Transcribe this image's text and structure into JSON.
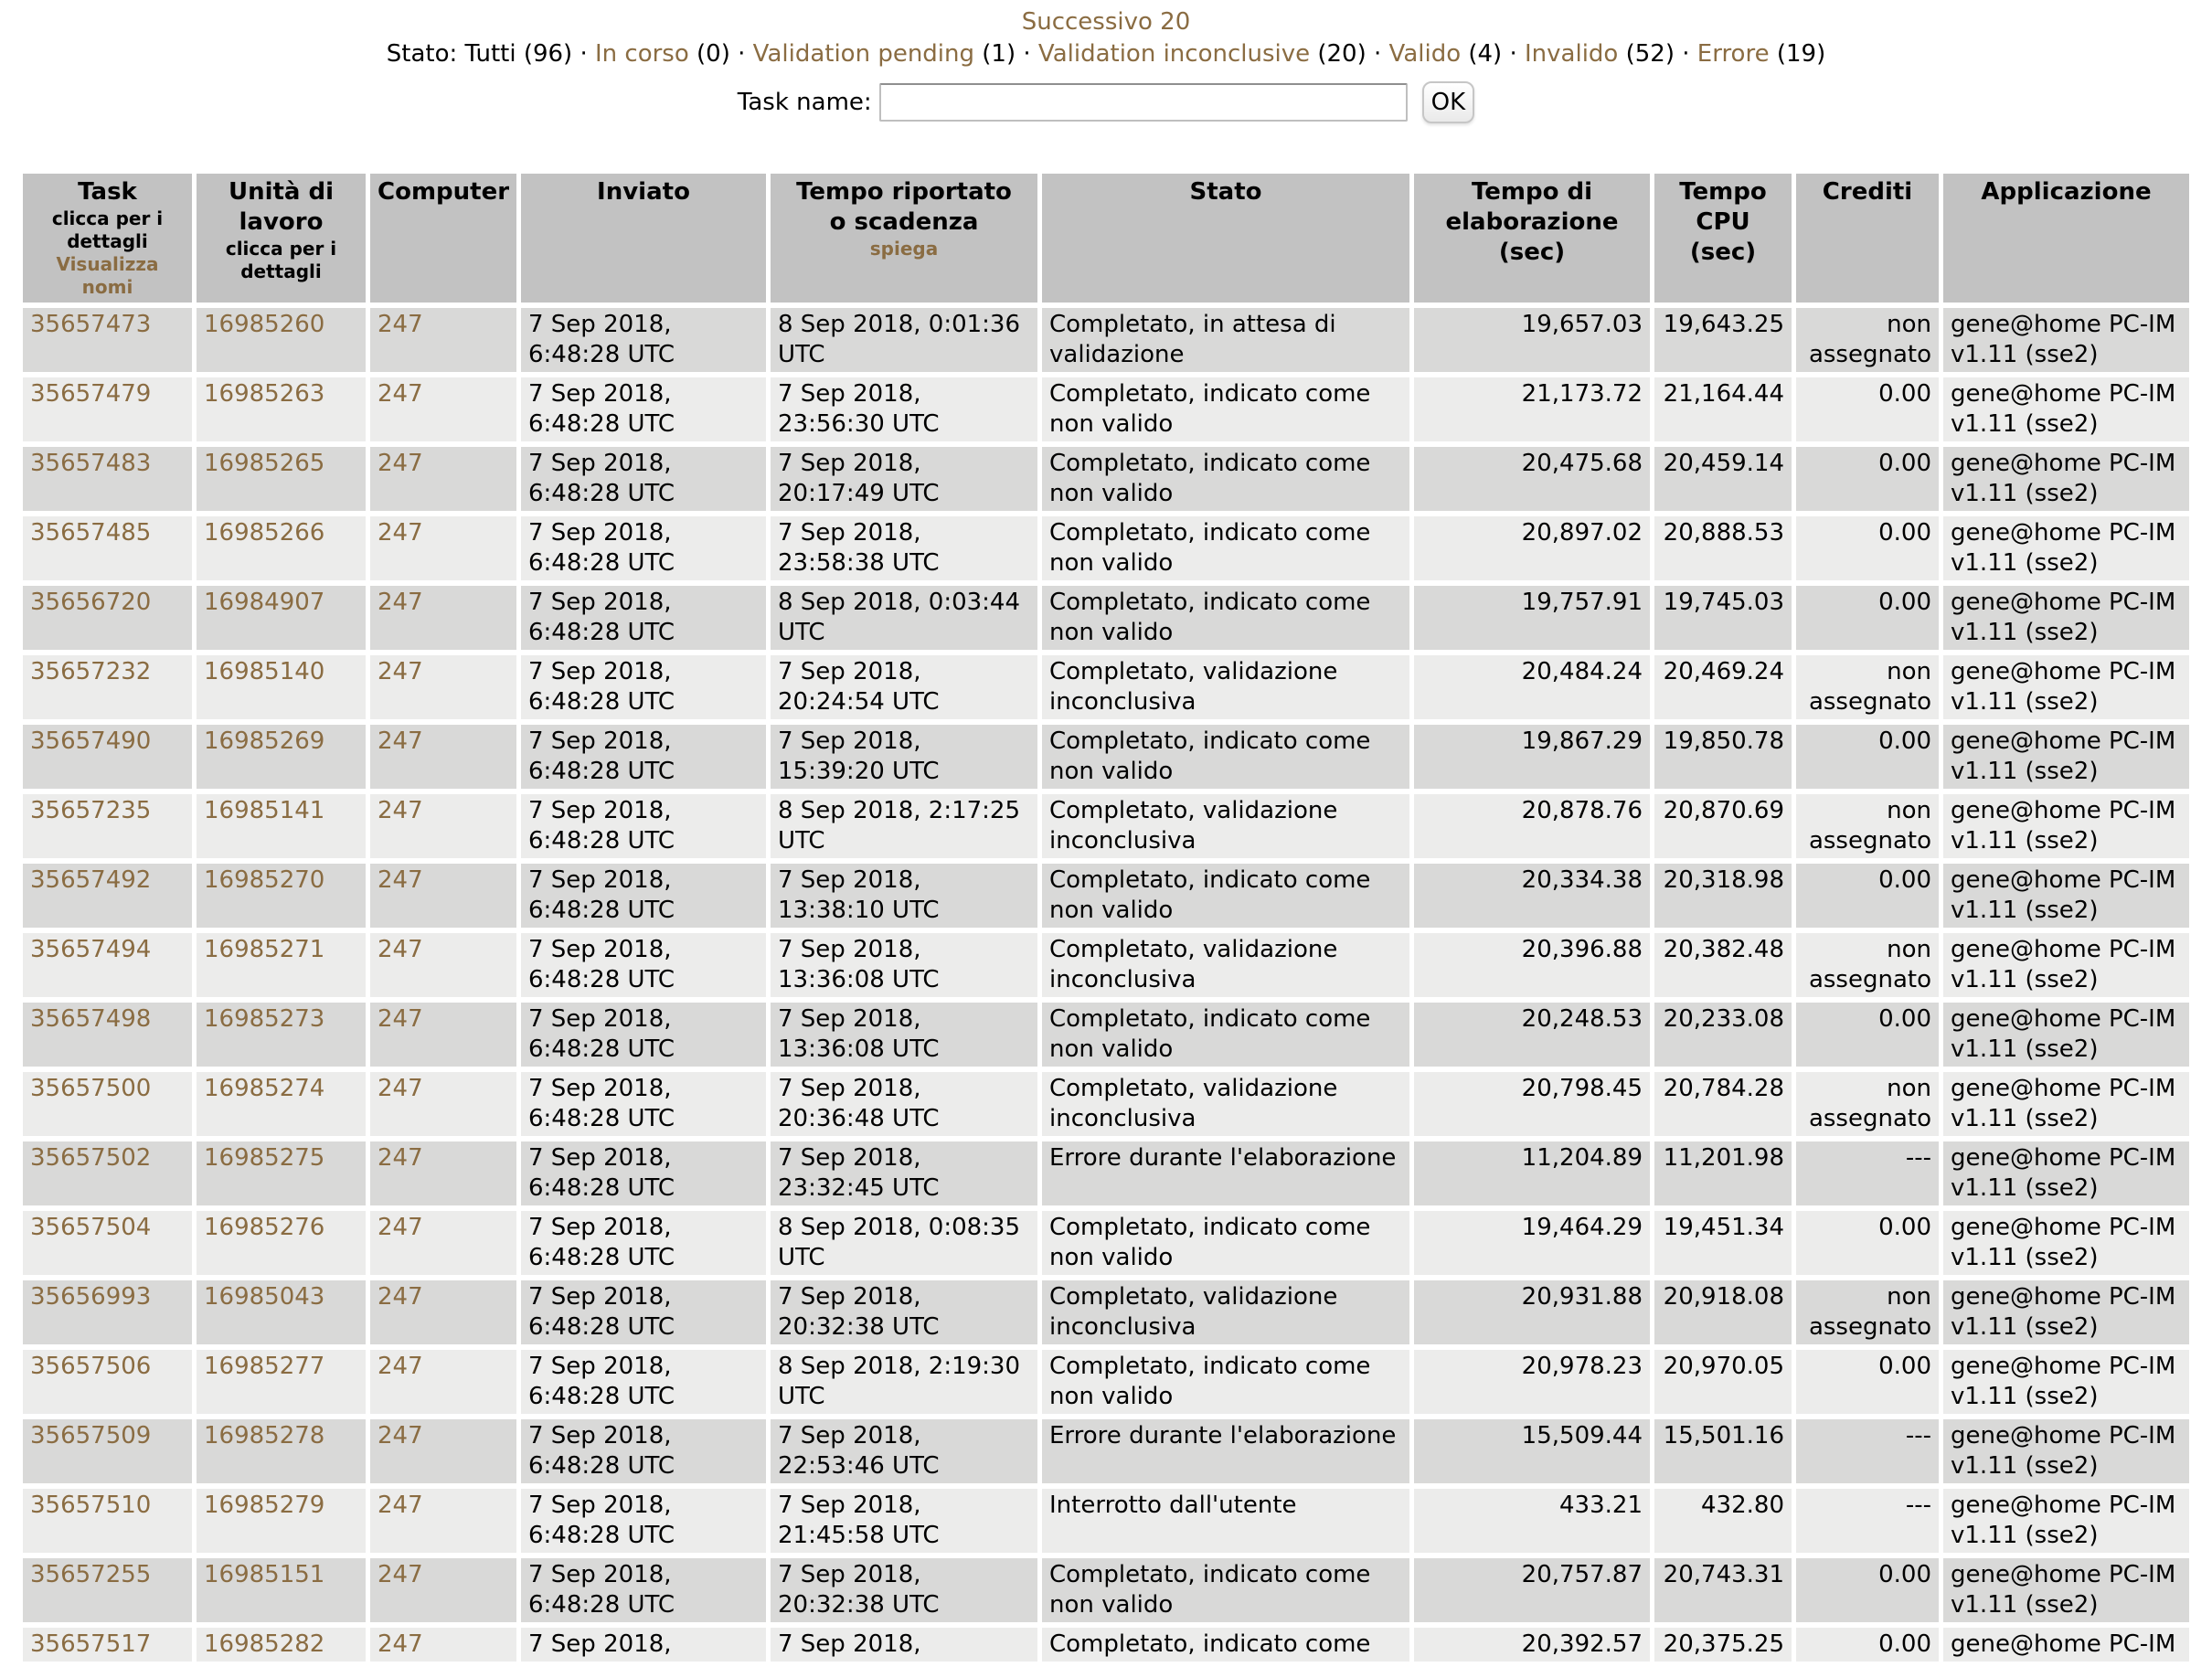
{
  "colors": {
    "link_color": "#8a6c42",
    "header_bg": "#c2c2c2",
    "row_dark": "#d9d9d8",
    "row_light": "#ececeb"
  },
  "pagination": {
    "next_label": "Successivo 20"
  },
  "status_filter": {
    "label": "Stato:",
    "separator": "·",
    "items": [
      {
        "label": "Tutti",
        "count_display": "(96)",
        "link": false
      },
      {
        "label": "In corso",
        "count_display": "(0)",
        "link": true
      },
      {
        "label": "Validation pending",
        "count_display": "(1)",
        "link": true
      },
      {
        "label": "Validation inconclusive",
        "count_display": "(20)",
        "link": true
      },
      {
        "label": "Valido",
        "count_display": "(4)",
        "link": true
      },
      {
        "label": "Invalido",
        "count_display": "(52)",
        "link": true
      },
      {
        "label": "Errore",
        "count_display": "(19)",
        "link": true
      }
    ]
  },
  "task_search": {
    "label": "Task name:",
    "value": "",
    "button_label": "OK"
  },
  "table": {
    "headers": {
      "task": {
        "title": "Task",
        "sub": "clicca per i dettagli",
        "link": "Visualizza nomi"
      },
      "workunit": {
        "title": "Unità di lavoro",
        "sub": "clicca per i dettagli"
      },
      "computer": {
        "title": "Computer"
      },
      "sent": {
        "title": "Inviato"
      },
      "reported": {
        "title": "Tempo riportato o scadenza",
        "link": "spiega"
      },
      "status": {
        "title": "Stato"
      },
      "elapsed": {
        "title": "Tempo di elaborazione (sec)"
      },
      "cpu": {
        "title": "Tempo CPU (sec)"
      },
      "credit": {
        "title": "Crediti"
      },
      "app": {
        "title": "Applicazione"
      }
    },
    "rows": [
      {
        "task": "35657473",
        "workunit": "16985260",
        "computer": "247",
        "sent": "7 Sep 2018, 6:48:28 UTC",
        "reported": "8 Sep 2018, 0:01:36 UTC",
        "status": "Completato, in attesa di validazione",
        "elapsed": "19,657.03",
        "cpu": "19,643.25",
        "credit": "non assegnato",
        "app": "gene@home PC-IM v1.11 (sse2)"
      },
      {
        "task": "35657479",
        "workunit": "16985263",
        "computer": "247",
        "sent": "7 Sep 2018, 6:48:28 UTC",
        "reported": "7 Sep 2018, 23:56:30 UTC",
        "status": "Completato, indicato come non valido",
        "elapsed": "21,173.72",
        "cpu": "21,164.44",
        "credit": "0.00",
        "app": "gene@home PC-IM v1.11 (sse2)"
      },
      {
        "task": "35657483",
        "workunit": "16985265",
        "computer": "247",
        "sent": "7 Sep 2018, 6:48:28 UTC",
        "reported": "7 Sep 2018, 20:17:49 UTC",
        "status": "Completato, indicato come non valido",
        "elapsed": "20,475.68",
        "cpu": "20,459.14",
        "credit": "0.00",
        "app": "gene@home PC-IM v1.11 (sse2)"
      },
      {
        "task": "35657485",
        "workunit": "16985266",
        "computer": "247",
        "sent": "7 Sep 2018, 6:48:28 UTC",
        "reported": "7 Sep 2018, 23:58:38 UTC",
        "status": "Completato, indicato come non valido",
        "elapsed": "20,897.02",
        "cpu": "20,888.53",
        "credit": "0.00",
        "app": "gene@home PC-IM v1.11 (sse2)"
      },
      {
        "task": "35656720",
        "workunit": "16984907",
        "computer": "247",
        "sent": "7 Sep 2018, 6:48:28 UTC",
        "reported": "8 Sep 2018, 0:03:44 UTC",
        "status": "Completato, indicato come non valido",
        "elapsed": "19,757.91",
        "cpu": "19,745.03",
        "credit": "0.00",
        "app": "gene@home PC-IM v1.11 (sse2)"
      },
      {
        "task": "35657232",
        "workunit": "16985140",
        "computer": "247",
        "sent": "7 Sep 2018, 6:48:28 UTC",
        "reported": "7 Sep 2018, 20:24:54 UTC",
        "status": "Completato, validazione inconclusiva",
        "elapsed": "20,484.24",
        "cpu": "20,469.24",
        "credit": "non assegnato",
        "app": "gene@home PC-IM v1.11 (sse2)"
      },
      {
        "task": "35657490",
        "workunit": "16985269",
        "computer": "247",
        "sent": "7 Sep 2018, 6:48:28 UTC",
        "reported": "7 Sep 2018, 15:39:20 UTC",
        "status": "Completato, indicato come non valido",
        "elapsed": "19,867.29",
        "cpu": "19,850.78",
        "credit": "0.00",
        "app": "gene@home PC-IM v1.11 (sse2)"
      },
      {
        "task": "35657235",
        "workunit": "16985141",
        "computer": "247",
        "sent": "7 Sep 2018, 6:48:28 UTC",
        "reported": "8 Sep 2018, 2:17:25 UTC",
        "status": "Completato, validazione inconclusiva",
        "elapsed": "20,878.76",
        "cpu": "20,870.69",
        "credit": "non assegnato",
        "app": "gene@home PC-IM v1.11 (sse2)"
      },
      {
        "task": "35657492",
        "workunit": "16985270",
        "computer": "247",
        "sent": "7 Sep 2018, 6:48:28 UTC",
        "reported": "7 Sep 2018, 13:38:10 UTC",
        "status": "Completato, indicato come non valido",
        "elapsed": "20,334.38",
        "cpu": "20,318.98",
        "credit": "0.00",
        "app": "gene@home PC-IM v1.11 (sse2)"
      },
      {
        "task": "35657494",
        "workunit": "16985271",
        "computer": "247",
        "sent": "7 Sep 2018, 6:48:28 UTC",
        "reported": "7 Sep 2018, 13:36:08 UTC",
        "status": "Completato, validazione inconclusiva",
        "elapsed": "20,396.88",
        "cpu": "20,382.48",
        "credit": "non assegnato",
        "app": "gene@home PC-IM v1.11 (sse2)"
      },
      {
        "task": "35657498",
        "workunit": "16985273",
        "computer": "247",
        "sent": "7 Sep 2018, 6:48:28 UTC",
        "reported": "7 Sep 2018, 13:36:08 UTC",
        "status": "Completato, indicato come non valido",
        "elapsed": "20,248.53",
        "cpu": "20,233.08",
        "credit": "0.00",
        "app": "gene@home PC-IM v1.11 (sse2)"
      },
      {
        "task": "35657500",
        "workunit": "16985274",
        "computer": "247",
        "sent": "7 Sep 2018, 6:48:28 UTC",
        "reported": "7 Sep 2018, 20:36:48 UTC",
        "status": "Completato, validazione inconclusiva",
        "elapsed": "20,798.45",
        "cpu": "20,784.28",
        "credit": "non assegnato",
        "app": "gene@home PC-IM v1.11 (sse2)"
      },
      {
        "task": "35657502",
        "workunit": "16985275",
        "computer": "247",
        "sent": "7 Sep 2018, 6:48:28 UTC",
        "reported": "7 Sep 2018, 23:32:45 UTC",
        "status": "Errore durante l'elaborazione",
        "elapsed": "11,204.89",
        "cpu": "11,201.98",
        "credit": "---",
        "app": "gene@home PC-IM v1.11 (sse2)"
      },
      {
        "task": "35657504",
        "workunit": "16985276",
        "computer": "247",
        "sent": "7 Sep 2018, 6:48:28 UTC",
        "reported": "8 Sep 2018, 0:08:35 UTC",
        "status": "Completato, indicato come non valido",
        "elapsed": "19,464.29",
        "cpu": "19,451.34",
        "credit": "0.00",
        "app": "gene@home PC-IM v1.11 (sse2)"
      },
      {
        "task": "35656993",
        "workunit": "16985043",
        "computer": "247",
        "sent": "7 Sep 2018, 6:48:28 UTC",
        "reported": "7 Sep 2018, 20:32:38 UTC",
        "status": "Completato, validazione inconclusiva",
        "elapsed": "20,931.88",
        "cpu": "20,918.08",
        "credit": "non assegnato",
        "app": "gene@home PC-IM v1.11 (sse2)"
      },
      {
        "task": "35657506",
        "workunit": "16985277",
        "computer": "247",
        "sent": "7 Sep 2018, 6:48:28 UTC",
        "reported": "8 Sep 2018, 2:19:30 UTC",
        "status": "Completato, indicato come non valido",
        "elapsed": "20,978.23",
        "cpu": "20,970.05",
        "credit": "0.00",
        "app": "gene@home PC-IM v1.11 (sse2)"
      },
      {
        "task": "35657509",
        "workunit": "16985278",
        "computer": "247",
        "sent": "7 Sep 2018, 6:48:28 UTC",
        "reported": "7 Sep 2018, 22:53:46 UTC",
        "status": "Errore durante l'elaborazione",
        "elapsed": "15,509.44",
        "cpu": "15,501.16",
        "credit": "---",
        "app": "gene@home PC-IM v1.11 (sse2)"
      },
      {
        "task": "35657510",
        "workunit": "16985279",
        "computer": "247",
        "sent": "7 Sep 2018, 6:48:28 UTC",
        "reported": "7 Sep 2018, 21:45:58 UTC",
        "status": "Interrotto dall'utente",
        "elapsed": "433.21",
        "cpu": "432.80",
        "credit": "---",
        "app": "gene@home PC-IM v1.11 (sse2)"
      },
      {
        "task": "35657255",
        "workunit": "16985151",
        "computer": "247",
        "sent": "7 Sep 2018, 6:48:28 UTC",
        "reported": "7 Sep 2018, 20:32:38 UTC",
        "status": "Completato, indicato come non valido",
        "elapsed": "20,757.87",
        "cpu": "20,743.31",
        "credit": "0.00",
        "app": "gene@home PC-IM v1.11 (sse2)"
      },
      {
        "task": "35657517",
        "workunit": "16985282",
        "computer": "247",
        "sent": "7 Sep 2018,",
        "reported": "7 Sep 2018,",
        "status": "Completato, indicato come",
        "elapsed": "20,392.57",
        "cpu": "20,375.25",
        "credit": "0.00",
        "app": "gene@home PC-IM"
      }
    ]
  }
}
